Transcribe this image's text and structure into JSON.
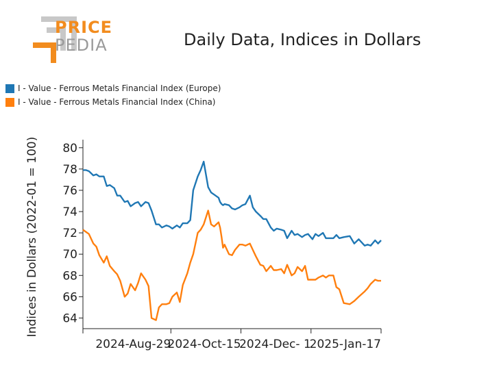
{
  "logo": {
    "line1": "PRICE",
    "line2": "PEDIA"
  },
  "chart_data": {
    "type": "line",
    "title": "Daily Data, Indices in Dollars",
    "ylabel": "Indices in Dollars (2022-01 = 100)",
    "xlabel": "",
    "ylim": [
      63,
      80.5
    ],
    "yticks": [
      64,
      66,
      68,
      70,
      72,
      74,
      76,
      78,
      80
    ],
    "xlim": [
      "2024-07-01",
      "2025-01-17"
    ],
    "xticks": [
      "2024-Aug-29",
      "2024-Oct-15",
      "2024-Dec- 1",
      "2025-Jan-17"
    ],
    "xtick_dates": [
      "2024-08-29",
      "2024-10-15",
      "2024-12-01",
      "2025-01-17"
    ],
    "legend_position": "top-left",
    "grid": false,
    "series": [
      {
        "name": "I - Value - Ferrous Metals Financial Index (Europe)",
        "color": "#1f77b4",
        "x": [
          "2024-07-01",
          "2024-07-03",
          "2024-07-05",
          "2024-07-08",
          "2024-07-10",
          "2024-07-12",
          "2024-07-15",
          "2024-07-17",
          "2024-07-19",
          "2024-07-22",
          "2024-07-24",
          "2024-07-26",
          "2024-07-29",
          "2024-07-31",
          "2024-08-02",
          "2024-08-05",
          "2024-08-07",
          "2024-08-09",
          "2024-08-12",
          "2024-08-14",
          "2024-08-16",
          "2024-08-19",
          "2024-08-21",
          "2024-08-23",
          "2024-08-26",
          "2024-08-28",
          "2024-08-30",
          "2024-09-02",
          "2024-09-04",
          "2024-09-06",
          "2024-09-09",
          "2024-09-11",
          "2024-09-13",
          "2024-09-16",
          "2024-09-18",
          "2024-09-20",
          "2024-09-23",
          "2024-09-25",
          "2024-09-27",
          "2024-09-30",
          "2024-10-01",
          "2024-10-02",
          "2024-10-03",
          "2024-10-04",
          "2024-10-07",
          "2024-10-09",
          "2024-10-11",
          "2024-10-14",
          "2024-10-16",
          "2024-10-18",
          "2024-10-21",
          "2024-10-23",
          "2024-10-25",
          "2024-10-28",
          "2024-10-30",
          "2024-11-01",
          "2024-11-04",
          "2024-11-06",
          "2024-11-08",
          "2024-11-11",
          "2024-11-13",
          "2024-11-15",
          "2024-11-18",
          "2024-11-20",
          "2024-11-22",
          "2024-11-25",
          "2024-11-27",
          "2024-11-29",
          "2024-12-02",
          "2024-12-04",
          "2024-12-06",
          "2024-12-09",
          "2024-12-11",
          "2024-12-13",
          "2024-12-16",
          "2024-12-18",
          "2024-12-20",
          "2024-12-23",
          "2024-12-27",
          "2024-12-30",
          "2025-01-02",
          "2025-01-06",
          "2025-01-08",
          "2025-01-10",
          "2025-01-13",
          "2025-01-15",
          "2025-01-17"
        ],
        "values": [
          77.9,
          77.9,
          77.8,
          77.4,
          77.5,
          77.3,
          77.3,
          76.4,
          76.5,
          76.2,
          75.5,
          75.5,
          74.9,
          75.0,
          74.5,
          74.8,
          74.9,
          74.5,
          74.9,
          74.8,
          74.1,
          72.8,
          72.8,
          72.5,
          72.7,
          72.6,
          72.4,
          72.7,
          72.5,
          72.9,
          72.9,
          73.2,
          76.0,
          77.3,
          77.9,
          78.7,
          76.3,
          75.8,
          75.6,
          75.3,
          74.9,
          74.7,
          74.6,
          74.7,
          74.6,
          74.3,
          74.2,
          74.4,
          74.6,
          74.7,
          75.5,
          74.4,
          74.0,
          73.6,
          73.3,
          73.3,
          72.5,
          72.2,
          72.4,
          72.3,
          72.2,
          71.5,
          72.2,
          71.8,
          71.9,
          71.6,
          71.8,
          71.9,
          71.4,
          71.9,
          71.7,
          72.0,
          71.5,
          71.5,
          71.5,
          71.8,
          71.5,
          71.6,
          71.7,
          71.0,
          71.4,
          70.8,
          70.9,
          70.8,
          71.3,
          71.0,
          71.3
        ]
      },
      {
        "name": "I - Value - Ferrous Metals Financial Index (China)",
        "color": "#ff7f0e",
        "x": [
          "2024-07-01",
          "2024-07-03",
          "2024-07-05",
          "2024-07-08",
          "2024-07-10",
          "2024-07-12",
          "2024-07-15",
          "2024-07-17",
          "2024-07-19",
          "2024-07-22",
          "2024-07-24",
          "2024-07-26",
          "2024-07-29",
          "2024-07-31",
          "2024-08-02",
          "2024-08-05",
          "2024-08-07",
          "2024-08-09",
          "2024-08-12",
          "2024-08-14",
          "2024-08-16",
          "2024-08-19",
          "2024-08-21",
          "2024-08-23",
          "2024-08-26",
          "2024-08-28",
          "2024-08-30",
          "2024-09-02",
          "2024-09-04",
          "2024-09-06",
          "2024-09-09",
          "2024-09-11",
          "2024-09-13",
          "2024-09-16",
          "2024-09-18",
          "2024-09-20",
          "2024-09-23",
          "2024-09-25",
          "2024-09-27",
          "2024-09-30",
          "2024-10-01",
          "2024-10-02",
          "2024-10-03",
          "2024-10-04",
          "2024-10-07",
          "2024-10-09",
          "2024-10-11",
          "2024-10-14",
          "2024-10-16",
          "2024-10-18",
          "2024-10-21",
          "2024-10-23",
          "2024-10-25",
          "2024-10-28",
          "2024-10-30",
          "2024-11-01",
          "2024-11-04",
          "2024-11-06",
          "2024-11-08",
          "2024-11-11",
          "2024-11-13",
          "2024-11-15",
          "2024-11-18",
          "2024-11-20",
          "2024-11-22",
          "2024-11-25",
          "2024-11-27",
          "2024-11-29",
          "2024-12-02",
          "2024-12-04",
          "2024-12-06",
          "2024-12-09",
          "2024-12-11",
          "2024-12-13",
          "2024-12-16",
          "2024-12-18",
          "2024-12-20",
          "2024-12-23",
          "2024-12-27",
          "2024-12-30",
          "2025-01-02",
          "2025-01-06",
          "2025-01-08",
          "2025-01-10",
          "2025-01-13",
          "2025-01-15",
          "2025-01-17"
        ],
        "values": [
          72.3,
          72.1,
          71.9,
          71.0,
          70.7,
          69.9,
          69.2,
          69.8,
          68.9,
          68.4,
          68.1,
          67.5,
          66.0,
          66.3,
          67.2,
          66.6,
          67.3,
          68.2,
          67.6,
          67.0,
          64.0,
          63.8,
          65.0,
          65.3,
          65.3,
          65.4,
          66.0,
          66.4,
          65.5,
          67.1,
          68.2,
          69.2,
          70.0,
          72.0,
          72.3,
          72.8,
          74.1,
          72.8,
          72.6,
          73.0,
          72.5,
          71.6,
          70.6,
          70.9,
          70.0,
          69.9,
          70.4,
          70.9,
          70.9,
          70.8,
          71.0,
          70.4,
          69.8,
          69.0,
          68.9,
          68.4,
          68.9,
          68.5,
          68.5,
          68.6,
          68.2,
          69.0,
          68.0,
          68.2,
          68.8,
          68.4,
          68.9,
          67.6,
          67.6,
          67.6,
          67.8,
          68.0,
          67.8,
          68.0,
          68.0,
          66.9,
          66.7,
          65.4,
          65.3,
          65.6,
          66.0,
          66.5,
          66.8,
          67.2,
          67.6,
          67.5,
          67.5
        ]
      }
    ]
  }
}
